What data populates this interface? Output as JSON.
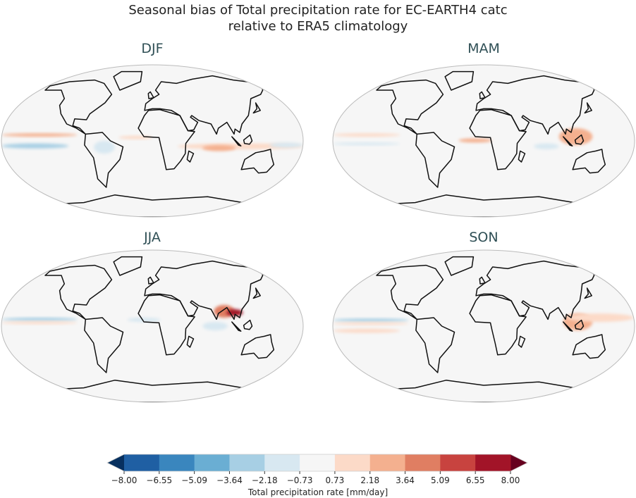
{
  "figure": {
    "title_line1": "Seasonal bias of Total precipitation rate for EC-EARTH4 catc",
    "title_line2": "relative to ERA5 climatology"
  },
  "chart_data": {
    "type": "heatmap",
    "projection": "Robinson",
    "panels": [
      {
        "title": "DJF",
        "patches": [
          {
            "lon": [
              -180,
              -90
            ],
            "lat": [
              5,
              9
            ],
            "bias": 2.5
          },
          {
            "lon": [
              -180,
              -100
            ],
            "lat": [
              -9,
              -3
            ],
            "bias": -3
          },
          {
            "lon": [
              30,
              180
            ],
            "lat": [
              -10,
              -3
            ],
            "bias": 1.5
          },
          {
            "lon": [
              -40,
              0
            ],
            "lat": [
              2,
              6
            ],
            "bias": 1.5
          },
          {
            "lon": [
              60,
              100
            ],
            "lat": [
              -12,
              -5
            ],
            "bias": 3
          },
          {
            "lon": [
              140,
              180
            ],
            "lat": [
              -8,
              -2
            ],
            "bias": -2
          },
          {
            "lon": [
              -70,
              -45
            ],
            "lat": [
              -15,
              0
            ],
            "bias": -2
          }
        ]
      },
      {
        "title": "MAM",
        "patches": [
          {
            "lon": [
              -180,
              -100
            ],
            "lat": [
              5,
              9
            ],
            "bias": 2
          },
          {
            "lon": [
              -180,
              -100
            ],
            "lat": [
              -5,
              -2
            ],
            "bias": -2
          },
          {
            "lon": [
              -30,
              10
            ],
            "lat": [
              -2,
              3
            ],
            "bias": 3
          },
          {
            "lon": [
              90,
              130
            ],
            "lat": [
              -5,
              15
            ],
            "bias": 3
          },
          {
            "lon": [
              60,
              90
            ],
            "lat": [
              -10,
              -3
            ],
            "bias": -2
          }
        ]
      },
      {
        "title": "JJA",
        "patches": [
          {
            "lon": [
              -180,
              -90
            ],
            "lat": [
              6,
              10
            ],
            "bias": -3
          },
          {
            "lon": [
              -180,
              -90
            ],
            "lat": [
              3,
              5
            ],
            "bias": 2
          },
          {
            "lon": [
              75,
              100
            ],
            "lat": [
              10,
              25
            ],
            "bias": 5
          },
          {
            "lon": [
              90,
              110
            ],
            "lat": [
              12,
              20
            ],
            "bias": 7
          },
          {
            "lon": [
              60,
              90
            ],
            "lat": [
              -5,
              5
            ],
            "bias": -2
          },
          {
            "lon": [
              -30,
              10
            ],
            "lat": [
              5,
              10
            ],
            "bias": -2
          }
        ]
      },
      {
        "title": "SON",
        "patches": [
          {
            "lon": [
              -180,
              -90
            ],
            "lat": [
              5,
              9
            ],
            "bias": -3
          },
          {
            "lon": [
              -180,
              -90
            ],
            "lat": [
              2,
              4
            ],
            "bias": 2
          },
          {
            "lon": [
              95,
              130
            ],
            "lat": [
              -5,
              15
            ],
            "bias": 3
          },
          {
            "lon": [
              -180,
              -100
            ],
            "lat": [
              -8,
              -3
            ],
            "bias": 1.5
          },
          {
            "lon": [
              100,
              180
            ],
            "lat": [
              5,
              15
            ],
            "bias": 1.5
          }
        ]
      }
    ],
    "colorbar": {
      "label": "Total precipitation rate [mm/day]",
      "ticks": [
        "−8.00",
        "−6.55",
        "−5.09",
        "−3.64",
        "−2.18",
        "−0.73",
        "0.73",
        "2.18",
        "3.64",
        "5.09",
        "6.55",
        "8.00"
      ],
      "levels": [
        -8.0,
        -6.55,
        -5.09,
        -3.64,
        -2.18,
        -0.73,
        0.73,
        2.18,
        3.64,
        5.09,
        6.55,
        8.0
      ],
      "colors": [
        "#1f5fa3",
        "#3a86be",
        "#6aaed3",
        "#a7cfe4",
        "#d8e8f1",
        "#f6f6f6",
        "#fcdac8",
        "#f4b08f",
        "#e07e62",
        "#c8433f",
        "#a21428"
      ],
      "extend_low_color": "#07305f",
      "extend_high_color": "#67001f"
    }
  }
}
